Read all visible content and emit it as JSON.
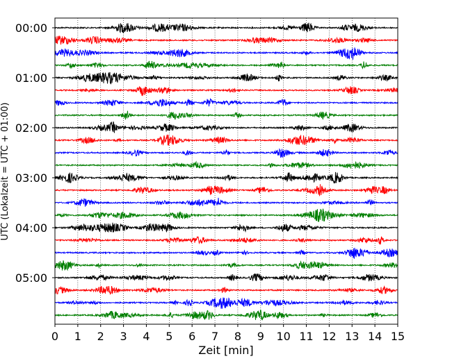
{
  "chart_data": {
    "type": "line",
    "title": "",
    "xlabel": "Zeit  [min]",
    "ylabel": "UTC (Lokalzeit = UTC + 01:00)",
    "xlim": [
      0,
      15
    ],
    "x_ticks": [
      "0",
      "1",
      "2",
      "3",
      "4",
      "5",
      "6",
      "7",
      "8",
      "9",
      "10",
      "11",
      "12",
      "13",
      "14",
      "15"
    ],
    "y_ticks": [
      "00:00",
      "01:00",
      "02:00",
      "03:00",
      "04:00",
      "05:00"
    ],
    "grid": "vertical dotted at each minute",
    "trace_interval_minutes": 15,
    "trace_colors": [
      "#000000",
      "#ff0000",
      "#0000ff",
      "#007f00"
    ],
    "traces": [
      {
        "start": "00:00",
        "color": "#000000"
      },
      {
        "start": "00:15",
        "color": "#ff0000"
      },
      {
        "start": "00:30",
        "color": "#0000ff"
      },
      {
        "start": "00:45",
        "color": "#007f00"
      },
      {
        "start": "01:00",
        "color": "#000000"
      },
      {
        "start": "01:15",
        "color": "#ff0000"
      },
      {
        "start": "01:30",
        "color": "#0000ff"
      },
      {
        "start": "01:45",
        "color": "#007f00"
      },
      {
        "start": "02:00",
        "color": "#000000"
      },
      {
        "start": "02:15",
        "color": "#ff0000"
      },
      {
        "start": "02:30",
        "color": "#0000ff"
      },
      {
        "start": "02:45",
        "color": "#007f00"
      },
      {
        "start": "03:00",
        "color": "#000000"
      },
      {
        "start": "03:15",
        "color": "#ff0000"
      },
      {
        "start": "03:30",
        "color": "#0000ff"
      },
      {
        "start": "03:45",
        "color": "#007f00"
      },
      {
        "start": "04:00",
        "color": "#000000"
      },
      {
        "start": "04:15",
        "color": "#ff0000"
      },
      {
        "start": "04:30",
        "color": "#0000ff"
      },
      {
        "start": "04:45",
        "color": "#007f00"
      },
      {
        "start": "05:00",
        "color": "#000000"
      },
      {
        "start": "05:15",
        "color": "#ff0000"
      },
      {
        "start": "05:30",
        "color": "#0000ff"
      },
      {
        "start": "05:45",
        "color": "#007f00"
      }
    ]
  }
}
